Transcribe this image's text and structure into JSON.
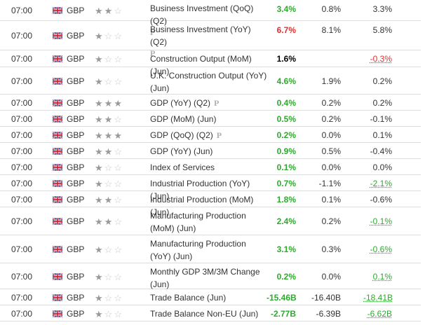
{
  "events": [
    {
      "time": "07:00",
      "currency": "GBP",
      "stars": 2,
      "event": "Business Investment (QoQ) (Q2)",
      "prelim": "P",
      "actual": "3.4%",
      "actual_color": "green",
      "forecast": "0.8%",
      "previous": "3.3%",
      "previous_color": "dim"
    },
    {
      "time": "07:00",
      "currency": "GBP",
      "stars": 1,
      "event": "Business Investment (YoY) (Q2)",
      "prelim": "P",
      "actual": "6.7%",
      "actual_color": "red",
      "forecast": "8.1%",
      "previous": "5.8%",
      "previous_color": "dim"
    },
    {
      "time": "07:00",
      "currency": "GBP",
      "stars": 1,
      "event": "Construction Output (MoM) (Jun)",
      "prelim": "",
      "actual": "1.6%",
      "actual_color": "black",
      "forecast": "",
      "previous": "-0.3%",
      "previous_color": "red"
    },
    {
      "time": "07:00",
      "currency": "GBP",
      "stars": 1,
      "event": "U.K. Construction Output (YoY) (Jun)",
      "prelim": "",
      "actual": "4.6%",
      "actual_color": "green",
      "forecast": "1.9%",
      "previous": "0.2%",
      "previous_color": "dim"
    },
    {
      "time": "07:00",
      "currency": "GBP",
      "stars": 3,
      "event": "GDP (YoY) (Q2)",
      "prelim": "P",
      "actual": "0.4%",
      "actual_color": "green",
      "forecast": "0.2%",
      "previous": "0.2%",
      "previous_color": "dim"
    },
    {
      "time": "07:00",
      "currency": "GBP",
      "stars": 2,
      "event": "GDP (MoM) (Jun)",
      "prelim": "",
      "actual": "0.5%",
      "actual_color": "green",
      "forecast": "0.2%",
      "previous": "-0.1%",
      "previous_color": "dim"
    },
    {
      "time": "07:00",
      "currency": "GBP",
      "stars": 3,
      "event": "GDP (QoQ) (Q2)",
      "prelim": "P",
      "actual": "0.2%",
      "actual_color": "green",
      "forecast": "0.0%",
      "previous": "0.1%",
      "previous_color": "dim"
    },
    {
      "time": "07:00",
      "currency": "GBP",
      "stars": 2,
      "event": "GDP (YoY) (Jun)",
      "prelim": "",
      "actual": "0.9%",
      "actual_color": "green",
      "forecast": "0.5%",
      "previous": "-0.4%",
      "previous_color": "dim"
    },
    {
      "time": "07:00",
      "currency": "GBP",
      "stars": 1,
      "event": "Index of Services",
      "prelim": "",
      "actual": "0.1%",
      "actual_color": "green",
      "forecast": "0.0%",
      "previous": "0.0%",
      "previous_color": "dim"
    },
    {
      "time": "07:00",
      "currency": "GBP",
      "stars": 1,
      "event": "Industrial Production (YoY) (Jun)",
      "prelim": "",
      "actual": "0.7%",
      "actual_color": "green",
      "forecast": "-1.1%",
      "previous": "-2.1%",
      "previous_color": "green"
    },
    {
      "time": "07:00",
      "currency": "GBP",
      "stars": 2,
      "event": "Industrial Production (MoM) (Jun)",
      "prelim": "",
      "actual": "1.8%",
      "actual_color": "green",
      "forecast": "0.1%",
      "previous": "-0.6%",
      "previous_color": "dim"
    },
    {
      "time": "07:00",
      "currency": "GBP",
      "stars": 2,
      "event": "Manufacturing Production (MoM) (Jun)",
      "prelim": "",
      "actual": "2.4%",
      "actual_color": "green",
      "forecast": "0.2%",
      "previous": "-0.1%",
      "previous_color": "green"
    },
    {
      "time": "07:00",
      "currency": "GBP",
      "stars": 1,
      "event": "Manufacturing Production (YoY) (Jun)",
      "prelim": "",
      "actual": "3.1%",
      "actual_color": "green",
      "forecast": "0.3%",
      "previous": "-0.6%",
      "previous_color": "green"
    },
    {
      "time": "07:00",
      "currency": "GBP",
      "stars": 1,
      "event": "Monthly GDP 3M/3M Change (Jun)",
      "prelim": "",
      "actual": "0.2%",
      "actual_color": "green",
      "forecast": "0.0%",
      "previous": "0.1%",
      "previous_color": "green"
    },
    {
      "time": "07:00",
      "currency": "GBP",
      "stars": 1,
      "event": "Trade Balance (Jun)",
      "prelim": "",
      "actual": "-15.46B",
      "actual_color": "green",
      "forecast": "-16.40B",
      "previous": "-18.41B",
      "previous_color": "green"
    },
    {
      "time": "07:00",
      "currency": "GBP",
      "stars": 1,
      "event": "Trade Balance Non-EU (Jun)",
      "prelim": "",
      "actual": "-2.77B",
      "actual_color": "green",
      "forecast": "-6.39B",
      "previous": "-6.62B",
      "previous_color": "green"
    }
  ]
}
